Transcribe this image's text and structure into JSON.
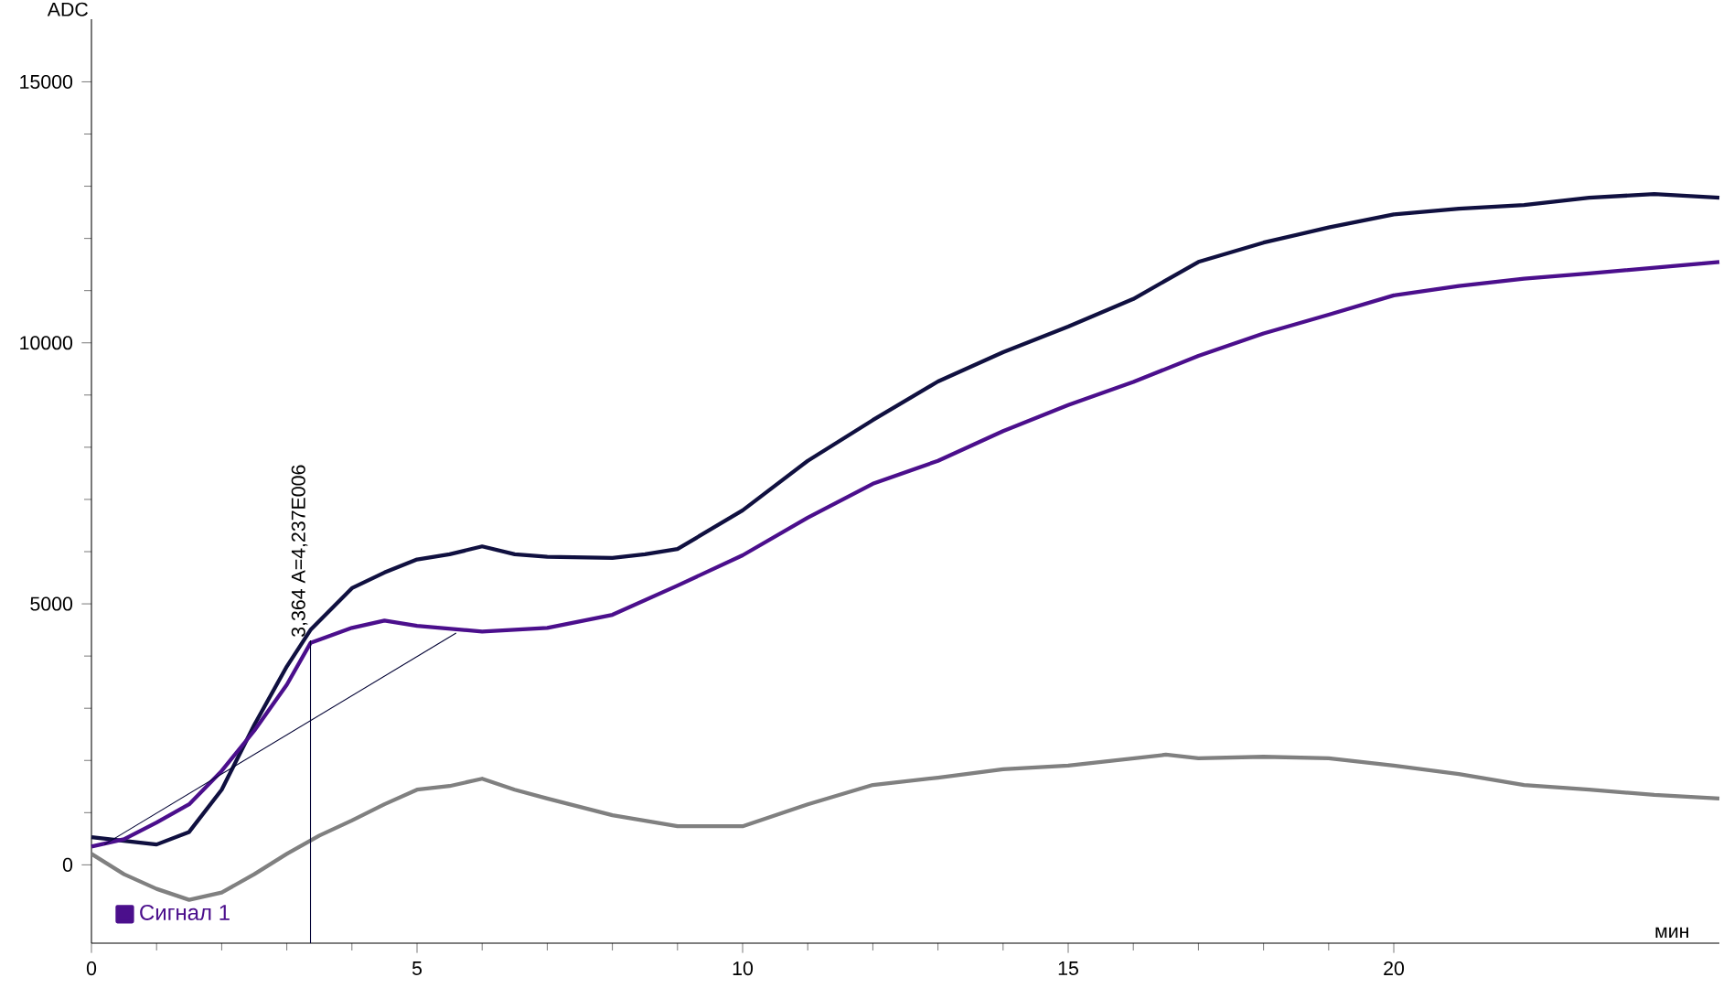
{
  "chart_data": {
    "type": "line",
    "xlabel": "мин",
    "ylabel": "ADC",
    "xlim": [
      0,
      25
    ],
    "ylim": [
      -1500,
      16200
    ],
    "xticks": [
      0,
      5,
      10,
      15,
      20
    ],
    "yticks": [
      0,
      5000,
      10000,
      15000
    ],
    "marker": "none",
    "legend": "bottom left",
    "annotations": [
      {
        "text": "3,364 A=4,237E006",
        "x": 3.364,
        "y": 4300
      }
    ],
    "series": [
      {
        "color": "#101040",
        "x": [
          0,
          1,
          1.5,
          2,
          2.5,
          3,
          3.364,
          4,
          4.5,
          5,
          5.5,
          6,
          6.5,
          7,
          8,
          8.5,
          9,
          10,
          11,
          12,
          13,
          14,
          15,
          16,
          17,
          18,
          19,
          20,
          21,
          22,
          23,
          24,
          25
        ],
        "values": [
          530,
          390,
          630,
          1440,
          2680,
          3800,
          4500,
          5300,
          5600,
          5850,
          5950,
          6100,
          5950,
          5900,
          5880,
          5950,
          6050,
          6790,
          7740,
          8520,
          9260,
          9820,
          10310,
          10840,
          11550,
          11920,
          12210,
          12460,
          12570,
          12640,
          12780,
          12850,
          12780
        ]
      },
      {
        "name": "Сигнал 1",
        "color": "#4b0f8c",
        "x": [
          0,
          0.5,
          1,
          1.5,
          2,
          2.5,
          3,
          3.364,
          4,
          4.5,
          5,
          6,
          7,
          8,
          9,
          10,
          11,
          12,
          13,
          14,
          15,
          16,
          17,
          18,
          19,
          20,
          21,
          22,
          23,
          24,
          25
        ],
        "values": [
          350,
          490,
          810,
          1160,
          1800,
          2570,
          3450,
          4250,
          4540,
          4680,
          4580,
          4470,
          4540,
          4790,
          5350,
          5930,
          6650,
          7300,
          7740,
          8310,
          8810,
          9250,
          9750,
          10180,
          10540,
          10910,
          11090,
          11230,
          11330,
          11440,
          11550
        ]
      },
      {
        "color": "#808080",
        "x": [
          0,
          0.5,
          1,
          1.5,
          2,
          2.5,
          3,
          3.5,
          4,
          4.5,
          5,
          5.5,
          6,
          6.5,
          7,
          8,
          9,
          10,
          11,
          12,
          13,
          14,
          15,
          16,
          16.5,
          17,
          18,
          19,
          20,
          21,
          22,
          23,
          24,
          25
        ],
        "values": [
          210,
          -180,
          -460,
          -670,
          -530,
          -180,
          210,
          560,
          850,
          1160,
          1440,
          1510,
          1650,
          1440,
          1270,
          950,
          740,
          740,
          1160,
          1530,
          1670,
          1830,
          1900,
          2040,
          2110,
          2040,
          2070,
          2040,
          1900,
          1740,
          1530,
          1440,
          1340,
          1270
        ]
      },
      {
        "color": "#000033",
        "x": [
          0.2,
          5.6
        ],
        "values": [
          390,
          4440
        ]
      },
      {
        "color": "#000033",
        "x": [
          3.364,
          3.364
        ],
        "values": [
          -1500,
          4300
        ]
      }
    ]
  }
}
